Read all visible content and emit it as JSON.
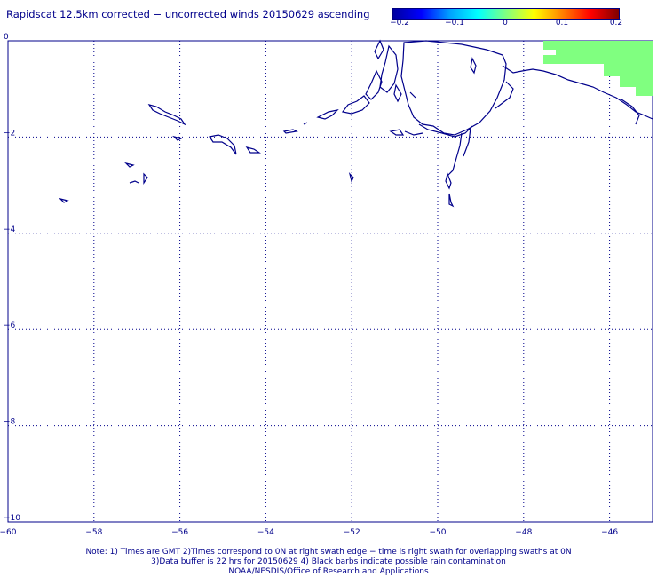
{
  "title": "Rapidscat 12.5km corrected − uncorrected winds 20150629 ascending",
  "colorbar": {
    "ticks": [
      "−0.2",
      "−0.1",
      "0",
      "0.1",
      "0.2"
    ],
    "colors": [
      "#0000a0",
      "#0000ff",
      "#00a0ff",
      "#00ffff",
      "#80ff80",
      "#ffff00",
      "#ff8000",
      "#ff0000",
      "#800000"
    ]
  },
  "axes": {
    "x_ticks": [
      "−60",
      "−58",
      "−56",
      "−54",
      "−52",
      "−50",
      "−48",
      "−46"
    ],
    "y_ticks": [
      "0",
      "−2",
      "−4",
      "−6",
      "−8",
      "−10"
    ],
    "x_range": [
      -60,
      -45
    ],
    "y_range": [
      -10,
      0
    ],
    "grid": "dotted"
  },
  "data_patch_color": "#80ff80",
  "coastline_color": "#00008b",
  "notes": [
    "Note: 1) Times are GMT 2)Times correspond to 0N at right swath edge − time is right swath for overlapping swaths at 0N",
    "3)Data buffer is 22 hrs for 20150629 4) Black barbs indicate possible rain contamination",
    "NOAA/NESDIS/Office of Research and Applications"
  ]
}
